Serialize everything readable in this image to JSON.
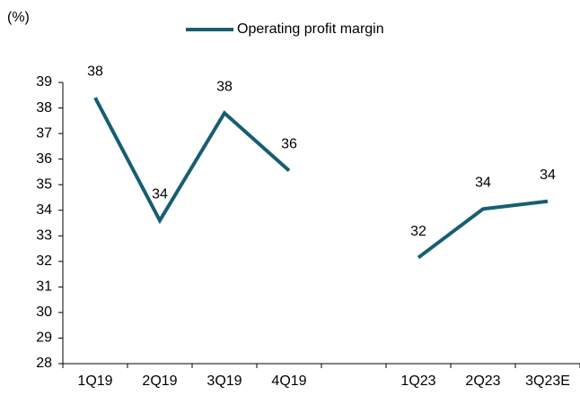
{
  "chart_data": {
    "type": "line",
    "y_label": "(%)",
    "categories": [
      "1Q19",
      "2Q19",
      "3Q19",
      "4Q19",
      null,
      "1Q23",
      "2Q23",
      "3Q23E"
    ],
    "series": [
      {
        "name": "Operating profit margin",
        "color": "#175e72",
        "values": [
          38.4,
          33.6,
          37.8,
          35.55,
          null,
          32.15,
          34.05,
          34.35
        ],
        "value_labels": [
          "38",
          "34",
          "38",
          "36",
          null,
          "32",
          "34",
          "34"
        ]
      }
    ],
    "ylim": [
      28,
      39
    ],
    "yticks": [
      28,
      29,
      30,
      31,
      32,
      33,
      34,
      35,
      36,
      37,
      38,
      39
    ],
    "legend": "top"
  }
}
